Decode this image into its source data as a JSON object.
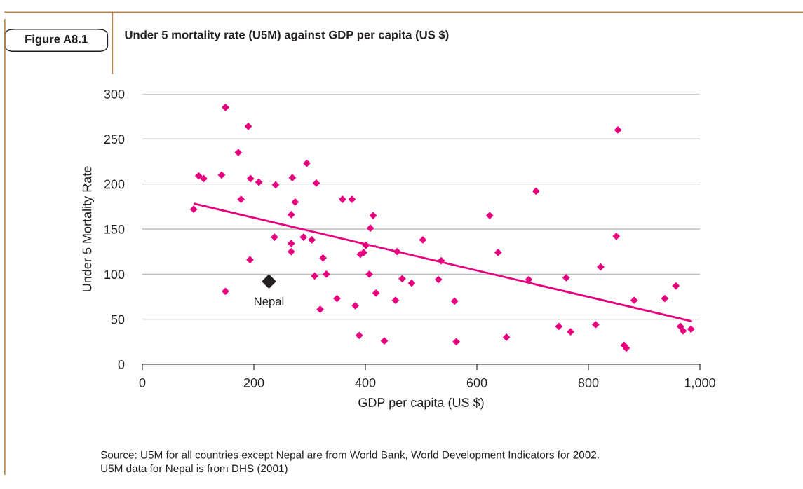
{
  "chart_data": {
    "type": "scatter",
    "title": "Under 5 mortality rate (U5M) against GDP per capita (US $)",
    "subtitle": "Figure A8.1",
    "xlabel": "GDP per capita (US $)",
    "ylabel": "Under 5 Mortality Rate",
    "xlim": [
      0,
      1000
    ],
    "xticks": [
      0,
      200,
      400,
      600,
      800,
      {
        "value": 1000,
        "label": "1,000"
      }
    ],
    "ylim": [
      0,
      300
    ],
    "yticks": [
      0,
      50,
      100,
      150,
      200,
      250,
      300
    ],
    "grid": "y",
    "legend": false,
    "marker": "diamond",
    "series": [
      {
        "color": "#e6007e",
        "x": [
          92,
          101,
          110,
          142,
          149,
          149,
          172,
          177,
          190,
          193,
          194,
          209,
          237,
          239,
          267,
          269,
          274,
          267,
          267,
          295,
          289,
          304,
          312,
          324,
          309,
          330,
          319,
          349,
          359,
          376,
          382,
          389,
          414,
          409,
          401,
          391,
          397,
          407,
          419,
          434,
          457,
          466,
          483,
          454,
          503,
          536,
          531,
          560,
          563,
          623,
          638,
          653,
          693,
          706,
          747,
          760,
          768,
          813,
          822,
          850,
          853,
          864,
          868,
          882,
          937,
          957,
          965,
          970,
          984
        ],
        "values": [
          172,
          209,
          206,
          210,
          285,
          81,
          235,
          183,
          264,
          116,
          206,
          202,
          141,
          199,
          166,
          207,
          180,
          134,
          125,
          223,
          141,
          138,
          201,
          118,
          98,
          100,
          61,
          73,
          183,
          183,
          65,
          32,
          165,
          151,
          132,
          122,
          124,
          100,
          79,
          26,
          125,
          95,
          90,
          71,
          138,
          115,
          94,
          70,
          25,
          165,
          124,
          30,
          94,
          192,
          42,
          96,
          36,
          44,
          108,
          142,
          260,
          21,
          18,
          71,
          73,
          87,
          42,
          37,
          39
        ]
      },
      {
        "name": "Nepal",
        "color": "#231f20",
        "x": [
          227
        ],
        "values": [
          92
        ]
      },
      {
        "type": "line",
        "marker": "none",
        "color": "#e6007e",
        "x": [
          94,
          984
        ],
        "values": [
          178,
          48
        ]
      }
    ],
    "annotations": [
      "Source: U5M for all countries except Nepal are from World Bank, World Development Indicators for 2002.",
      "U5M data for Nepal is from DHS (2001)"
    ]
  }
}
